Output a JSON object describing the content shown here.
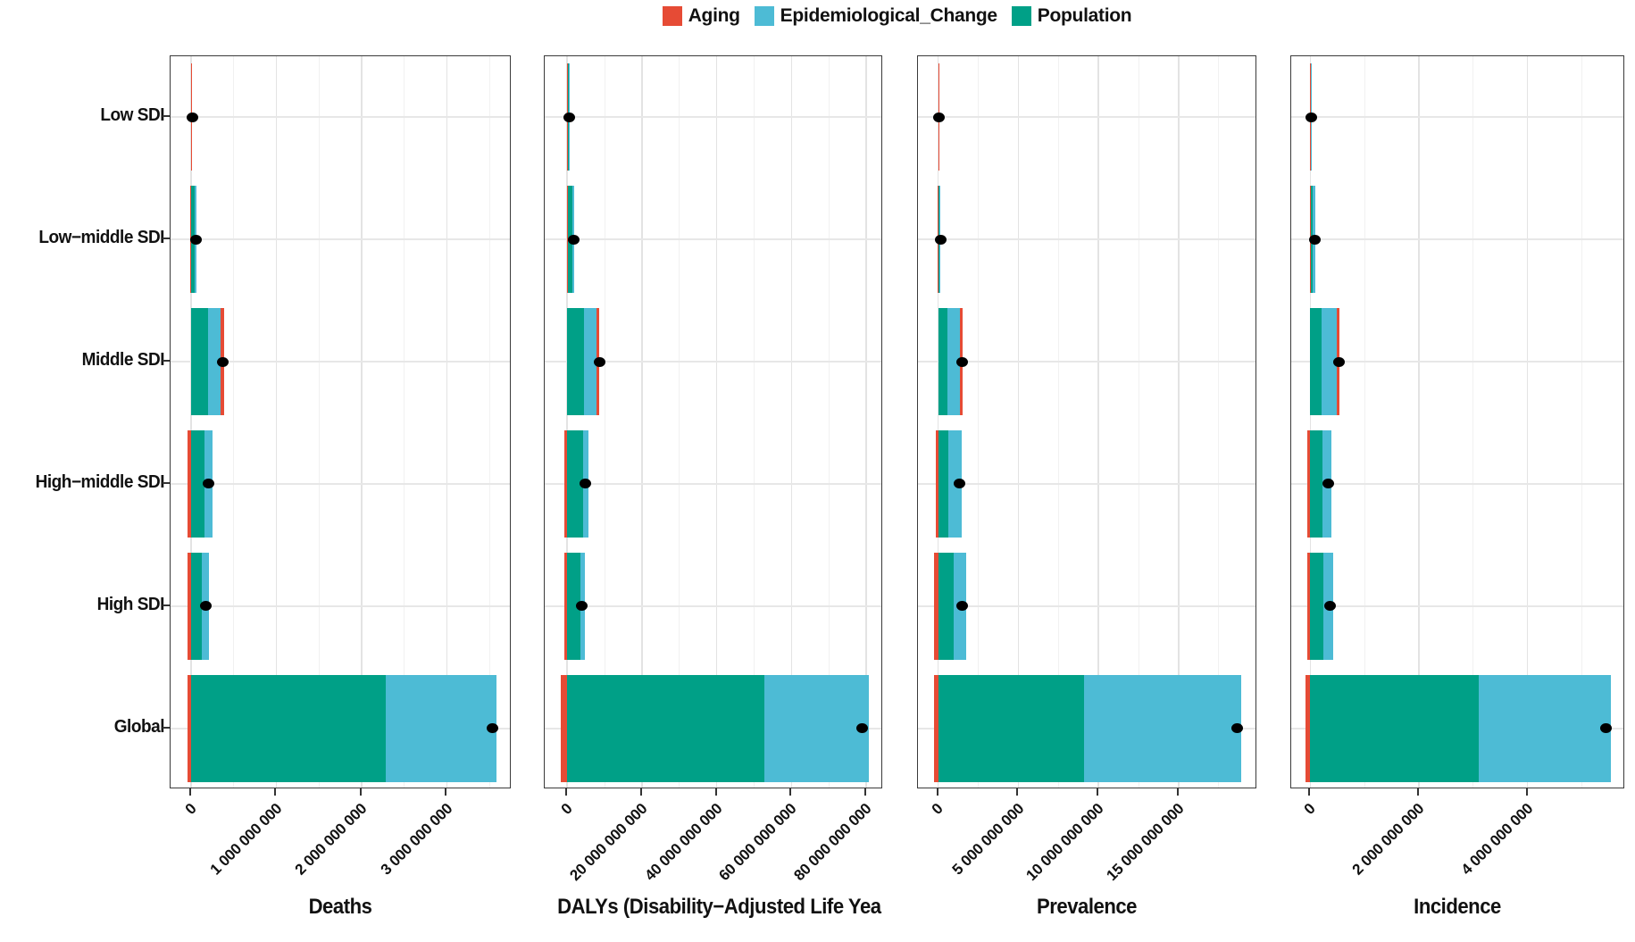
{
  "legend": {
    "items": [
      {
        "label": "Aging",
        "color": "#E64B35"
      },
      {
        "label": "Epidemiological_Change",
        "color": "#4DBBD5"
      },
      {
        "label": "Population",
        "color": "#00A087"
      }
    ]
  },
  "chart_data": {
    "type": "bar",
    "orientation": "horizontal",
    "stacked": true,
    "dot_marker_meaning": "net total change (black point)",
    "categories": [
      "Low SDI",
      "Low−middle SDI",
      "Middle SDI",
      "High−middle SDI",
      "High SDI",
      "Global"
    ],
    "series_names": [
      "Aging",
      "Epidemiological_Change",
      "Population"
    ],
    "panels": [
      {
        "title": "Deaths",
        "xlim": [
          -240000000,
          3760000000
        ],
        "ticks": [
          {
            "v": 0,
            "label": "0"
          },
          {
            "v": 1000000000,
            "label": "1 000 000 000"
          },
          {
            "v": 2000000000,
            "label": "2 000 000 000"
          },
          {
            "v": 3000000000,
            "label": "3 000 000 000"
          }
        ],
        "minor_ticks": [
          500000000,
          1500000000,
          2500000000,
          3500000000
        ],
        "rows": [
          {
            "category": "Low SDI",
            "Aging": -2000000,
            "Epidemiological_Change": 8000000,
            "Population": 6000000,
            "total": 12000000
          },
          {
            "category": "Low−middle SDI",
            "Aging": -5000000,
            "Epidemiological_Change": 20000000,
            "Population": 40000000,
            "total": 55000000
          },
          {
            "category": "Middle SDI",
            "Aging": 40000000,
            "Epidemiological_Change": 150000000,
            "Population": 200000000,
            "total": 370000000
          },
          {
            "category": "High−middle SDI",
            "Aging": -40000000,
            "Epidemiological_Change": 90000000,
            "Population": 160000000,
            "total": 210000000
          },
          {
            "category": "High SDI",
            "Aging": -40000000,
            "Epidemiological_Change": 80000000,
            "Population": 130000000,
            "total": 170000000
          },
          {
            "category": "Global",
            "Aging": -40000000,
            "Epidemiological_Change": 1300000000,
            "Population": 2280000000,
            "total": 3540000000
          }
        ]
      },
      {
        "title": "DALYs (Disability−Adjusted Life Yea",
        "xlim": [
          -6000000000,
          84500000000
        ],
        "ticks": [
          {
            "v": 0,
            "label": "0"
          },
          {
            "v": 20000000000,
            "label": "20 000 000 000"
          },
          {
            "v": 40000000000,
            "label": "40 000 000 000"
          },
          {
            "v": 60000000000,
            "label": "60 000 000 000"
          },
          {
            "v": 80000000000,
            "label": "80 000 000 000"
          }
        ],
        "minor_ticks": [
          10000000000,
          30000000000,
          50000000000,
          70000000000
        ],
        "rows": [
          {
            "category": "Low SDI",
            "Aging": -30000000,
            "Epidemiological_Change": 200000000,
            "Population": 350000000,
            "total": 520000000
          },
          {
            "category": "Low−middle SDI",
            "Aging": -100000000,
            "Epidemiological_Change": 450000000,
            "Population": 1350000000,
            "total": 1700000000
          },
          {
            "category": "Middle SDI",
            "Aging": 750000000,
            "Epidemiological_Change": 3400000000,
            "Population": 4500000000,
            "total": 8650000000
          },
          {
            "category": "High−middle SDI",
            "Aging": -850000000,
            "Epidemiological_Change": 1600000000,
            "Population": 4150000000,
            "total": 4900000000
          },
          {
            "category": "High SDI",
            "Aging": -850000000,
            "Epidemiological_Change": 1200000000,
            "Population": 3500000000,
            "total": 3850000000
          },
          {
            "category": "Global",
            "Aging": -1800000000,
            "Epidemiological_Change": 27900000000,
            "Population": 52800000000,
            "total": 78900000000
          }
        ]
      },
      {
        "title": "Prevalence",
        "xlim": [
          -1260000000,
          19900000000
        ],
        "ticks": [
          {
            "v": 0,
            "label": "0"
          },
          {
            "v": 5000000000,
            "label": "5 000 000 000"
          },
          {
            "v": 10000000000,
            "label": "10 000 000 000"
          },
          {
            "v": 15000000000,
            "label": "15 000 000 000"
          }
        ],
        "minor_ticks": [
          2500000000,
          7500000000,
          12500000000,
          17500000000
        ],
        "rows": [
          {
            "category": "Low SDI",
            "Aging": -5000000,
            "Epidemiological_Change": 20000000,
            "Population": 30000000,
            "total": 45000000
          },
          {
            "category": "Low−middle SDI",
            "Aging": -10000000,
            "Epidemiological_Change": 80000000,
            "Population": 70000000,
            "total": 140000000
          },
          {
            "category": "Middle SDI",
            "Aging": 150000000,
            "Epidemiological_Change": 830000000,
            "Population": 550000000,
            "total": 1520000000
          },
          {
            "category": "High−middle SDI",
            "Aging": -130000000,
            "Epidemiological_Change": 830000000,
            "Population": 650000000,
            "total": 1350000000
          },
          {
            "category": "High SDI",
            "Aging": -280000000,
            "Epidemiological_Change": 800000000,
            "Population": 950000000,
            "total": 1470000000
          },
          {
            "category": "Global",
            "Aging": -250000000,
            "Epidemiological_Change": 9800000000,
            "Population": 9100000000,
            "total": 18650000000
          }
        ]
      },
      {
        "title": "Incidence",
        "xlim": [
          -350000000,
          5800000000
        ],
        "ticks": [
          {
            "v": 0,
            "label": "0"
          },
          {
            "v": 2000000000,
            "label": "2 000 000 000"
          },
          {
            "v": 4000000000,
            "label": "4 000 000 000"
          }
        ],
        "minor_ticks": [
          1000000000,
          3000000000,
          5000000000
        ],
        "rows": [
          {
            "category": "Low SDI",
            "Aging": -2000000,
            "Epidemiological_Change": 10000000,
            "Population": 5000000,
            "total": 13000000
          },
          {
            "category": "Low−middle SDI",
            "Aging": -10000000,
            "Epidemiological_Change": 50000000,
            "Population": 40000000,
            "total": 80000000
          },
          {
            "category": "Middle SDI",
            "Aging": 40000000,
            "Epidemiological_Change": 280000000,
            "Population": 210000000,
            "total": 530000000
          },
          {
            "category": "High−middle SDI",
            "Aging": -50000000,
            "Epidemiological_Change": 170000000,
            "Population": 220000000,
            "total": 340000000
          },
          {
            "category": "High SDI",
            "Aging": -60000000,
            "Epidemiological_Change": 180000000,
            "Population": 250000000,
            "total": 370000000
          },
          {
            "category": "Global",
            "Aging": -80000000,
            "Epidemiological_Change": 2430000000,
            "Population": 3100000000,
            "total": 5450000000
          }
        ]
      }
    ]
  }
}
